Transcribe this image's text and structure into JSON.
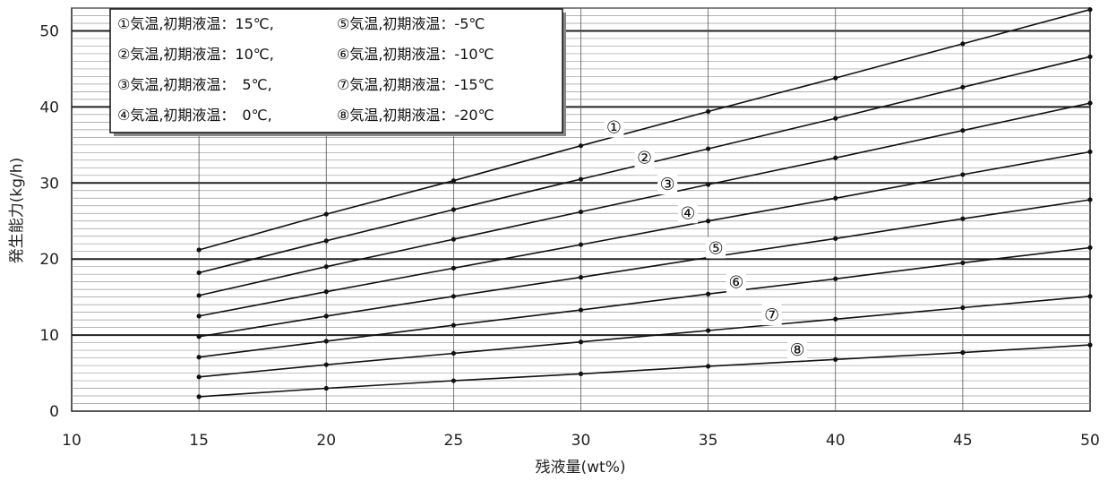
{
  "chart_data": {
    "type": "line",
    "title": "",
    "xlabel": "残液量(wt%)",
    "ylabel": "発生能力(kg/h)",
    "xlim": [
      10,
      50
    ],
    "ylim": [
      0,
      53
    ],
    "x_ticks": [
      10,
      15,
      20,
      25,
      30,
      35,
      40,
      45,
      50
    ],
    "y_ticks": [
      0,
      10,
      20,
      30,
      40,
      50
    ],
    "grid": true,
    "legend_position": "top-left",
    "x": [
      15,
      20,
      25,
      30,
      35,
      40,
      45,
      50
    ],
    "series": [
      {
        "name": "①気温,初期液温：15℃,",
        "marker": "①",
        "values": [
          21.2,
          25.9,
          30.3,
          34.9,
          39.4,
          43.8,
          48.3,
          52.8
        ]
      },
      {
        "name": "②気温,初期液温：10℃,",
        "marker": "②",
        "values": [
          18.2,
          22.4,
          26.5,
          30.5,
          34.5,
          38.5,
          42.6,
          46.6
        ]
      },
      {
        "name": "③気温,初期液温：　5℃,",
        "marker": "③",
        "values": [
          15.2,
          19.0,
          22.6,
          26.2,
          29.8,
          33.3,
          36.9,
          40.5
        ]
      },
      {
        "name": "④気温,初期液温：　0℃,",
        "marker": "④",
        "values": [
          12.5,
          15.7,
          18.8,
          21.9,
          25.0,
          28.0,
          31.1,
          34.1
        ]
      },
      {
        "name": "⑤気温,初期液温：-5℃",
        "marker": "⑤",
        "values": [
          9.8,
          12.5,
          15.1,
          17.6,
          20.2,
          22.7,
          25.3,
          27.8
        ]
      },
      {
        "name": "⑥気温,初期液温：-10℃",
        "marker": "⑥",
        "values": [
          7.1,
          9.2,
          11.3,
          13.3,
          15.4,
          17.4,
          19.5,
          21.5
        ]
      },
      {
        "name": "⑦気温,初期液温：-15℃",
        "marker": "⑦",
        "values": [
          4.5,
          6.1,
          7.6,
          9.1,
          10.6,
          12.1,
          13.6,
          15.1
        ]
      },
      {
        "name": "⑧気温,初期液温：-20℃",
        "marker": "⑧",
        "values": [
          1.9,
          3.0,
          4.0,
          4.9,
          5.9,
          6.8,
          7.7,
          8.7
        ]
      }
    ],
    "legend_columns": [
      [
        "①気温,初期液温：15℃,",
        "②気温,初期液温：10℃,",
        "③気温,初期液温：　5℃,",
        "④気温,初期液温：　0℃,"
      ],
      [
        "⑤気温,初期液温：-5℃",
        "⑥気温,初期液温：-10℃",
        "⑦気温,初期液温：-15℃",
        "⑧気温,初期液温：-20℃"
      ]
    ],
    "callouts": [
      {
        "label": "①",
        "x": 31.3,
        "y": 37.4
      },
      {
        "label": "②",
        "x": 32.5,
        "y": 33.4
      },
      {
        "label": "③",
        "x": 33.4,
        "y": 29.9
      },
      {
        "label": "④",
        "x": 34.2,
        "y": 26.1
      },
      {
        "label": "⑤",
        "x": 35.3,
        "y": 21.5
      },
      {
        "label": "⑥",
        "x": 36.1,
        "y": 17.0
      },
      {
        "label": "⑦",
        "x": 37.5,
        "y": 12.7
      },
      {
        "label": "⑧",
        "x": 38.5,
        "y": 8.1
      }
    ]
  }
}
